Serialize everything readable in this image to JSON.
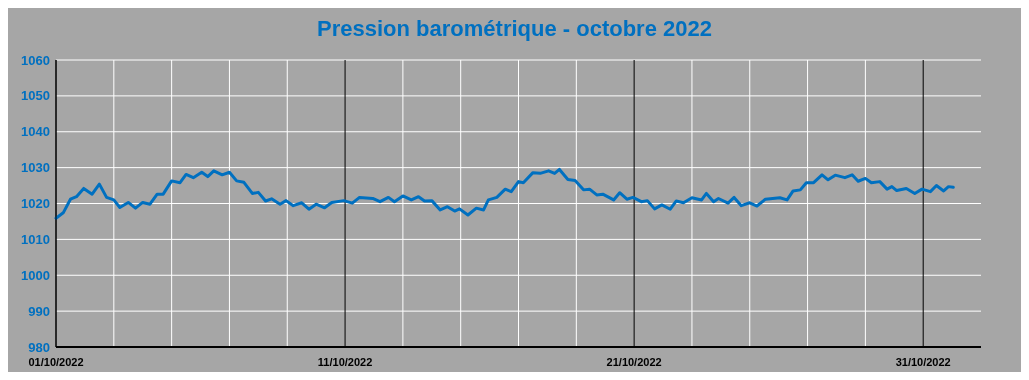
{
  "chart_data": {
    "type": "line",
    "title": "Pression barométrique - octobre 2022",
    "x": [
      "2022-10-01T00:00",
      "2022-10-01T06:00",
      "2022-10-01T12:00",
      "2022-10-01T17:00",
      "2022-10-01T23:00",
      "2022-10-02T06:00",
      "2022-10-02T12:00",
      "2022-10-02T18:00",
      "2022-10-03T00:00",
      "2022-10-03T05:00",
      "2022-10-03T12:00",
      "2022-10-03T18:00",
      "2022-10-04T00:00",
      "2022-10-04T06:00",
      "2022-10-04T12:00",
      "2022-10-04T17:00",
      "2022-10-05T00:00",
      "2022-10-05T07:00",
      "2022-10-05T12:00",
      "2022-10-05T18:00",
      "2022-10-06T01:00",
      "2022-10-06T06:00",
      "2022-10-06T11:00",
      "2022-10-06T18:00",
      "2022-10-07T00:00",
      "2022-10-07T06:00",
      "2022-10-07T12:00",
      "2022-10-07T19:00",
      "2022-10-08T00:00",
      "2022-10-08T06:00",
      "2022-10-08T11:00",
      "2022-10-08T18:00",
      "2022-10-08T23:00",
      "2022-10-09T05:00",
      "2022-10-09T12:00",
      "2022-10-09T18:00",
      "2022-10-10T00:00",
      "2022-10-10T07:00",
      "2022-10-10T13:00",
      "2022-10-10T23:00",
      "2022-10-11T06:00",
      "2022-10-11T12:00",
      "2022-10-11T23:00",
      "2022-10-12T05:00",
      "2022-10-12T12:00",
      "2022-10-12T17:00",
      "2022-10-13T00:00",
      "2022-10-13T07:00",
      "2022-10-13T13:00",
      "2022-10-13T18:00",
      "2022-10-14T00:00",
      "2022-10-14T07:00",
      "2022-10-14T13:00",
      "2022-10-14T19:00",
      "2022-10-14T23:00",
      "2022-10-15T06:00",
      "2022-10-15T13:00",
      "2022-10-15T19:00",
      "2022-10-15T23:00",
      "2022-10-16T06:00",
      "2022-10-16T13:00",
      "2022-10-16T18:00",
      "2022-10-17T00:00",
      "2022-10-17T04:00",
      "2022-10-17T12:00",
      "2022-10-17T18:00",
      "2022-10-18T01:00",
      "2022-10-18T06:00",
      "2022-10-18T10:00",
      "2022-10-18T17:00",
      "2022-10-18T23:00",
      "2022-10-19T06:00",
      "2022-10-19T11:00",
      "2022-10-19T17:00",
      "2022-10-19T22:00",
      "2022-10-20T07:00",
      "2022-10-20T12:00",
      "2022-10-20T18:00",
      "2022-10-20T23:00",
      "2022-10-21T06:00",
      "2022-10-21T11:00",
      "2022-10-21T17:00",
      "2022-10-21T23:00",
      "2022-10-22T06:00",
      "2022-10-22T11:00",
      "2022-10-22T17:00",
      "2022-10-23T00:00",
      "2022-10-23T08:00",
      "2022-10-23T12:00",
      "2022-10-23T18:00",
      "2022-10-23T22:00",
      "2022-10-24T06:00",
      "2022-10-24T11:00",
      "2022-10-24T17:00",
      "2022-10-25T00:00",
      "2022-10-25T06:00",
      "2022-10-25T13:00",
      "2022-10-26T01:00",
      "2022-10-26T07:00",
      "2022-10-26T12:00",
      "2022-10-26T18:00",
      "2022-10-26T23:00",
      "2022-10-27T05:00",
      "2022-10-27T12:00",
      "2022-10-27T17:00",
      "2022-10-27T23:00",
      "2022-10-28T07:00",
      "2022-10-28T13:00",
      "2022-10-28T18:00",
      "2022-10-29T00:00",
      "2022-10-29T05:00",
      "2022-10-29T12:00",
      "2022-10-29T18:00",
      "2022-10-29T22:00",
      "2022-10-30T02:00",
      "2022-10-30T10:00",
      "2022-10-30T17:00",
      "2022-10-30T23:00",
      "2022-10-31T06:00",
      "2022-10-31T11:00",
      "2022-10-31T17:00",
      "2022-10-31T21:00",
      "2022-11-01T01:00"
    ],
    "series": [
      {
        "color": "#0070c0",
        "values": [
          1015.9,
          1017.4,
          1021.2,
          1021.9,
          1024.2,
          1022.6,
          1025.4,
          1021.7,
          1021,
          1018.9,
          1020.3,
          1018.7,
          1020.3,
          1019.8,
          1022.6,
          1022.6,
          1026.3,
          1025.8,
          1028.1,
          1027.2,
          1028.7,
          1027.5,
          1029.1,
          1028,
          1028.7,
          1026.3,
          1025.9,
          1022.8,
          1023.1,
          1020.7,
          1021.3,
          1019.8,
          1020.8,
          1019.4,
          1020.2,
          1018.4,
          1019.8,
          1018.8,
          1020.3,
          1020.8,
          1020.1,
          1021.7,
          1021.4,
          1020.5,
          1021.7,
          1020.5,
          1022.1,
          1021,
          1021.9,
          1020.7,
          1020.8,
          1018.2,
          1019.1,
          1017.9,
          1018.5,
          1016.8,
          1018.7,
          1018.2,
          1021,
          1021.7,
          1024,
          1023.3,
          1026.1,
          1025.8,
          1028.6,
          1028.4,
          1029.1,
          1028.4,
          1029.5,
          1026.7,
          1026.4,
          1023.8,
          1024,
          1022.4,
          1022.6,
          1021,
          1023,
          1021.2,
          1021.7,
          1020.5,
          1020.8,
          1018.5,
          1019.6,
          1018.4,
          1020.7,
          1020.2,
          1021.6,
          1021,
          1022.8,
          1020.5,
          1021.4,
          1020.1,
          1021.7,
          1019.4,
          1020.2,
          1019.3,
          1021.2,
          1021.6,
          1021,
          1023.5,
          1023.8,
          1025.8,
          1025.8,
          1028,
          1026.6,
          1027.9,
          1027.2,
          1028,
          1026.2,
          1027,
          1025.8,
          1026.1,
          1024,
          1024.7,
          1023.6,
          1024.2,
          1022.8,
          1024,
          1023.3,
          1025,
          1023.5,
          1024.7,
          1024.5
        ]
      }
    ],
    "xlim": [
      "2022-10-01",
      "2022-11-02"
    ],
    "xticks": [
      {
        "value": "2022-10-01",
        "label": "01/10/2022"
      },
      {
        "value": "2022-10-03",
        "label": null
      },
      {
        "value": "2022-10-05",
        "label": null
      },
      {
        "value": "2022-10-07",
        "label": null
      },
      {
        "value": "2022-10-09",
        "label": null
      },
      {
        "value": "2022-10-11",
        "label": "11/10/2022"
      },
      {
        "value": "2022-10-13",
        "label": null
      },
      {
        "value": "2022-10-15",
        "label": null
      },
      {
        "value": "2022-10-17",
        "label": null
      },
      {
        "value": "2022-10-19",
        "label": null
      },
      {
        "value": "2022-10-21",
        "label": "21/10/2022"
      },
      {
        "value": "2022-10-23",
        "label": null
      },
      {
        "value": "2022-10-25",
        "label": null
      },
      {
        "value": "2022-10-27",
        "label": null
      },
      {
        "value": "2022-10-29",
        "label": null
      },
      {
        "value": "2022-10-31",
        "label": "31/10/2022"
      }
    ],
    "ylim": [
      980,
      1060
    ],
    "yticks": [
      980,
      990,
      1000,
      1010,
      1020,
      1030,
      1040,
      1050,
      1060
    ],
    "grid": true,
    "line_style": "solid",
    "marker": "none"
  }
}
